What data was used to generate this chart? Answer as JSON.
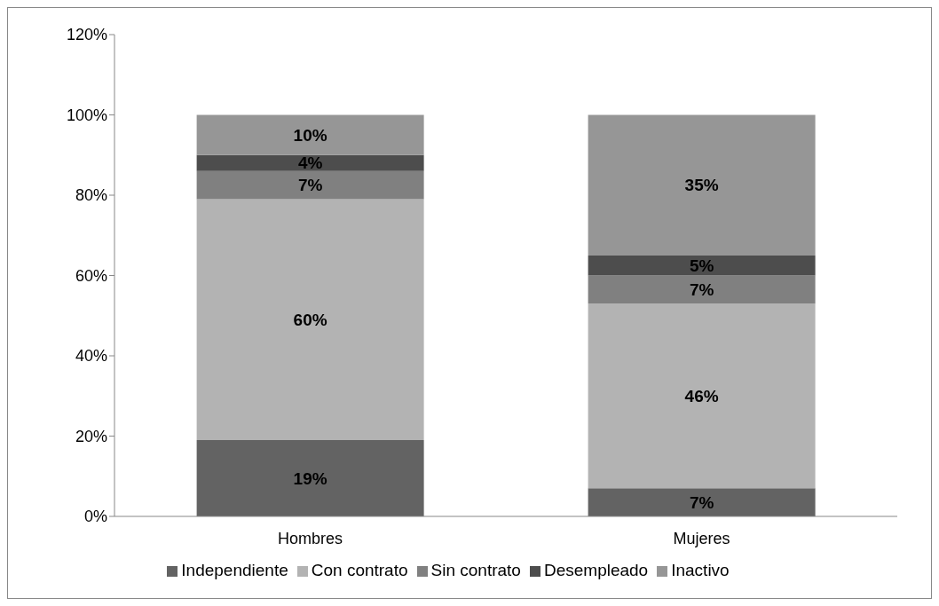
{
  "chart_data": {
    "type": "bar",
    "stacked": true,
    "categories": [
      "Hombres",
      "Mujeres"
    ],
    "series": [
      {
        "name": "Independiente",
        "color": "#636363",
        "values": [
          19,
          7
        ],
        "value_labels": [
          "19%",
          "7%"
        ]
      },
      {
        "name": "Con contrato",
        "color": "#b3b3b3",
        "values": [
          60,
          46
        ],
        "value_labels": [
          "60%",
          "46%"
        ]
      },
      {
        "name": "Sin contrato",
        "color": "#808080",
        "values": [
          7,
          7
        ],
        "value_labels": [
          "7%",
          "7%"
        ]
      },
      {
        "name": "Desempleado",
        "color": "#4d4d4d",
        "values": [
          4,
          5
        ],
        "value_labels": [
          "4%",
          "5%"
        ]
      },
      {
        "name": "Inactivo",
        "color": "#969696",
        "values": [
          10,
          35
        ],
        "value_labels": [
          "10%",
          "35%"
        ]
      }
    ],
    "ylim": [
      0,
      120
    ],
    "yticks": [
      {
        "value": 0,
        "label": "0%"
      },
      {
        "value": 20,
        "label": "20%"
      },
      {
        "value": 40,
        "label": "40%"
      },
      {
        "value": 60,
        "label": "60%"
      },
      {
        "value": 80,
        "label": "80%"
      },
      {
        "value": 100,
        "label": "100%"
      },
      {
        "value": 120,
        "label": "120%"
      }
    ],
    "grid": false,
    "legend": "bottom"
  }
}
